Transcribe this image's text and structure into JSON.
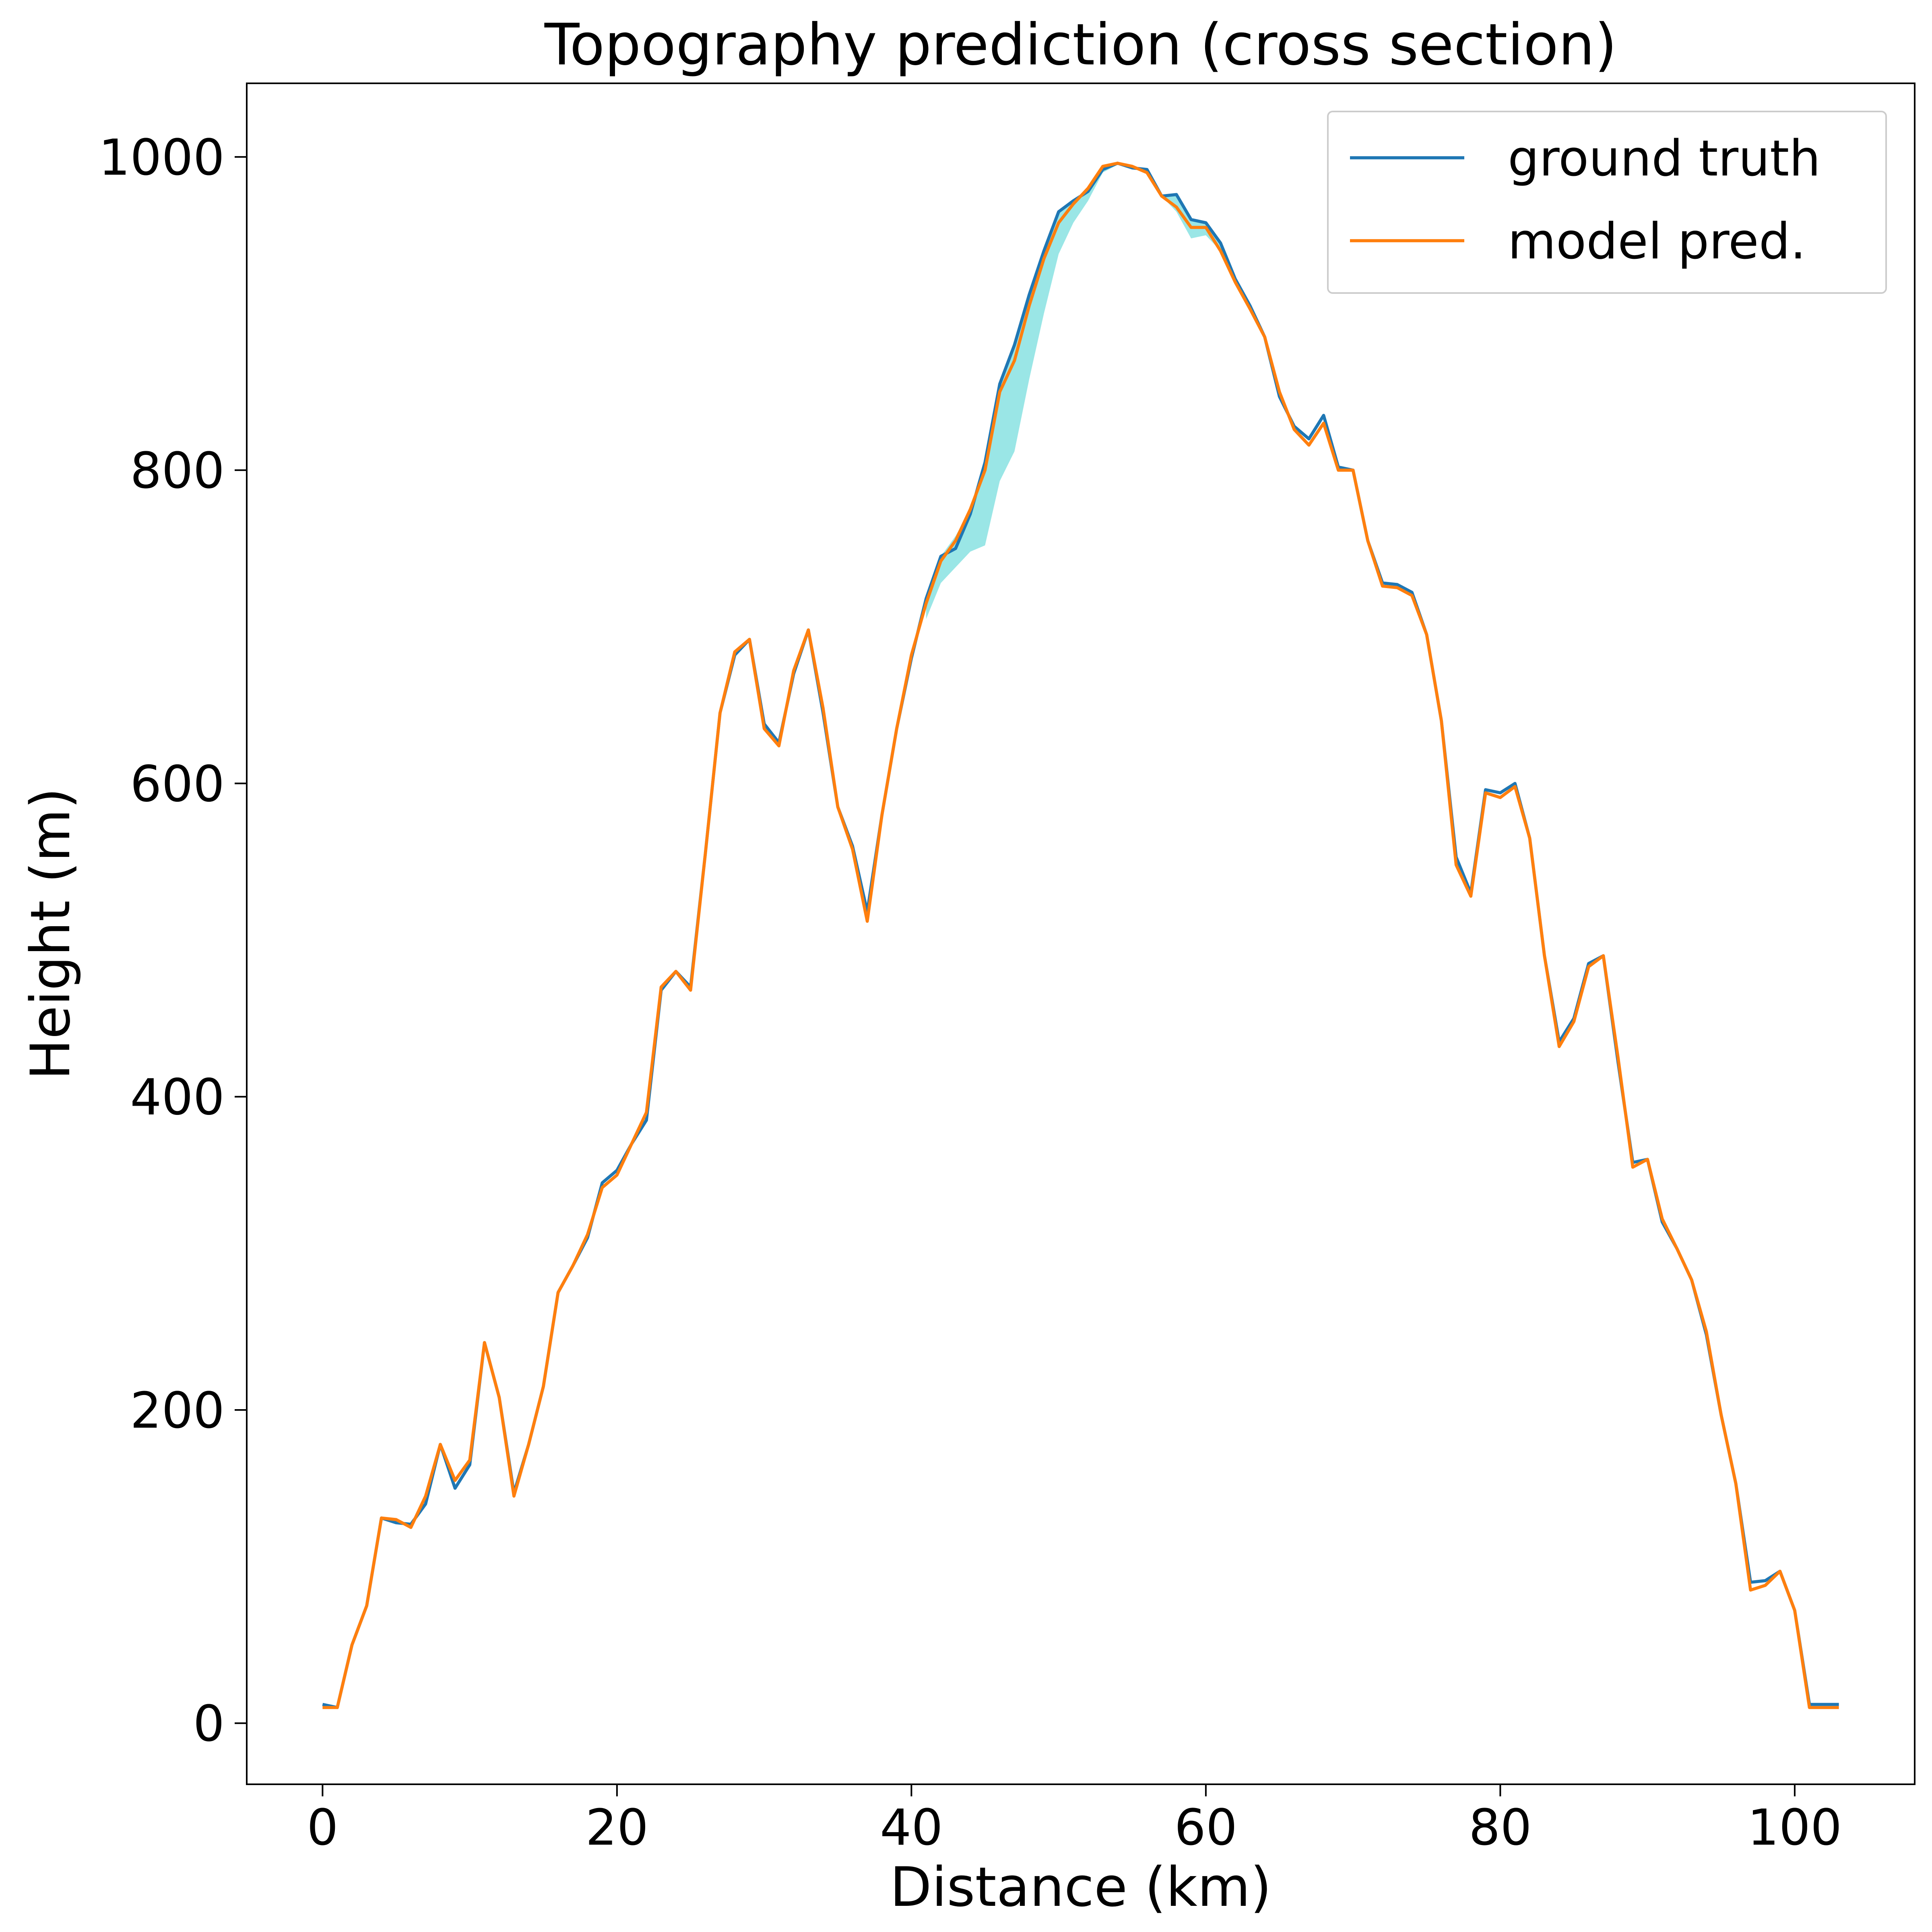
{
  "chart_data": {
    "type": "line",
    "title": "Topography prediction  (cross section)",
    "xlabel": "Distance (km)",
    "ylabel": "Height (m)",
    "x": [
      0,
      1,
      2,
      3,
      4,
      5,
      6,
      7,
      8,
      9,
      10,
      11,
      12,
      13,
      14,
      15,
      16,
      17,
      18,
      19,
      20,
      21,
      22,
      23,
      24,
      25,
      26,
      27,
      28,
      29,
      30,
      31,
      32,
      33,
      34,
      35,
      36,
      37,
      38,
      39,
      40,
      41,
      42,
      43,
      44,
      45,
      46,
      47,
      48,
      49,
      50,
      51,
      52,
      53,
      54,
      55,
      56,
      57,
      58,
      59,
      60,
      61,
      62,
      63,
      64,
      65,
      66,
      67,
      68,
      69,
      70,
      71,
      72,
      73,
      74,
      75,
      76,
      77,
      78,
      79,
      80,
      81,
      82,
      83,
      84,
      85,
      86,
      87,
      88,
      89,
      90,
      91,
      92,
      93,
      94,
      95,
      96,
      97,
      98,
      99,
      100,
      101,
      102,
      103
    ],
    "series": [
      {
        "name": "ground truth",
        "color": "#1f77b4",
        "values": [
          12,
          10,
          50,
          75,
          131,
          128,
          127,
          140,
          178,
          150,
          165,
          243,
          208,
          147,
          178,
          215,
          275,
          292,
          310,
          345,
          353,
          370,
          385,
          468,
          480,
          470,
          555,
          645,
          682,
          692,
          638,
          626,
          670,
          698,
          645,
          585,
          560,
          518,
          580,
          635,
          680,
          718,
          745,
          750,
          772,
          805,
          855,
          880,
          912,
          940,
          965,
          972,
          978,
          992,
          996,
          993,
          992,
          975,
          976,
          960,
          958,
          945,
          922,
          905,
          885,
          847,
          828,
          820,
          835,
          802,
          800,
          755,
          728,
          727,
          722,
          695,
          640,
          553,
          530,
          596,
          594,
          600,
          565,
          490,
          435,
          450,
          485,
          490,
          422,
          358,
          360,
          320,
          303,
          283,
          248,
          197,
          153,
          90,
          91,
          97,
          72,
          12,
          12,
          12
        ]
      },
      {
        "name": "model pred.",
        "color": "#ff7f0e",
        "values": [
          10,
          10,
          50,
          75,
          131,
          130,
          125,
          145,
          178,
          155,
          168,
          243,
          208,
          145,
          178,
          215,
          275,
          292,
          312,
          342,
          350,
          370,
          390,
          470,
          480,
          468,
          555,
          645,
          684,
          692,
          635,
          624,
          672,
          698,
          648,
          585,
          558,
          512,
          580,
          635,
          682,
          715,
          742,
          755,
          775,
          800,
          850,
          870,
          905,
          935,
          958,
          970,
          980,
          994,
          996,
          994,
          990,
          975,
          968,
          955,
          955,
          940,
          920,
          903,
          885,
          850,
          826,
          816,
          830,
          800,
          800,
          755,
          726,
          725,
          720,
          695,
          640,
          548,
          528,
          594,
          591,
          598,
          565,
          490,
          432,
          448,
          483,
          490,
          425,
          355,
          360,
          322,
          303,
          283,
          250,
          197,
          153,
          85,
          88,
          97,
          72,
          10,
          10,
          10
        ]
      }
    ],
    "band": {
      "color": "#9ae6e6",
      "x": [
        41,
        42,
        43,
        44,
        45,
        46,
        47,
        48,
        49,
        50,
        51,
        52,
        53,
        54,
        55,
        56,
        57,
        58,
        59,
        60,
        61,
        62
      ],
      "lower": [
        705,
        728,
        738,
        748,
        752,
        793,
        812,
        858,
        900,
        938,
        958,
        972,
        990,
        995,
        993,
        990,
        975,
        965,
        948,
        950,
        940,
        920
      ],
      "upper": [
        718,
        745,
        758,
        775,
        805,
        855,
        880,
        912,
        940,
        965,
        972,
        980,
        994,
        996,
        994,
        992,
        975,
        976,
        960,
        958,
        945,
        922
      ]
    },
    "xlim": [
      -5.15,
      108.15
    ],
    "ylim": [
      -39,
      1047
    ],
    "xticks": [
      0,
      20,
      40,
      60,
      80,
      100
    ],
    "yticks": [
      0,
      200,
      400,
      600,
      800,
      1000
    ],
    "legend": "upper right"
  }
}
